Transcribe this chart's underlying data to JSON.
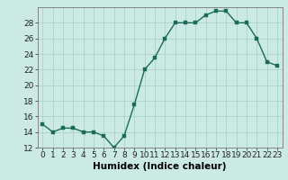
{
  "x": [
    0,
    1,
    2,
    3,
    4,
    5,
    6,
    7,
    8,
    9,
    10,
    11,
    12,
    13,
    14,
    15,
    16,
    17,
    18,
    19,
    20,
    21,
    22,
    23
  ],
  "y": [
    15,
    14,
    14.5,
    14.5,
    14,
    14,
    13.5,
    12,
    13.5,
    17.5,
    22,
    23.5,
    26,
    28,
    28,
    28,
    29,
    29.5,
    29.5,
    28,
    28,
    26,
    23,
    22.5
  ],
  "line_color": "#1a6b5a",
  "marker_color": "#1a6b5a",
  "bg_color": "#cceae4",
  "grid_color": "#aad4cc",
  "xlabel": "Humidex (Indice chaleur)",
  "ylim": [
    12,
    30
  ],
  "xlim": [
    -0.5,
    23.5
  ],
  "yticks": [
    12,
    14,
    16,
    18,
    20,
    22,
    24,
    26,
    28
  ],
  "xticks": [
    0,
    1,
    2,
    3,
    4,
    5,
    6,
    7,
    8,
    9,
    10,
    11,
    12,
    13,
    14,
    15,
    16,
    17,
    18,
    19,
    20,
    21,
    22,
    23
  ],
  "xtick_labels": [
    "0",
    "1",
    "2",
    "3",
    "4",
    "5",
    "6",
    "7",
    "8",
    "9",
    "10",
    "11",
    "12",
    "13",
    "14",
    "15",
    "16",
    "17",
    "18",
    "19",
    "20",
    "21",
    "22",
    "23"
  ],
  "xlabel_fontsize": 7.5,
  "tick_fontsize": 6.5,
  "line_width": 1.0,
  "marker_size": 2.5
}
